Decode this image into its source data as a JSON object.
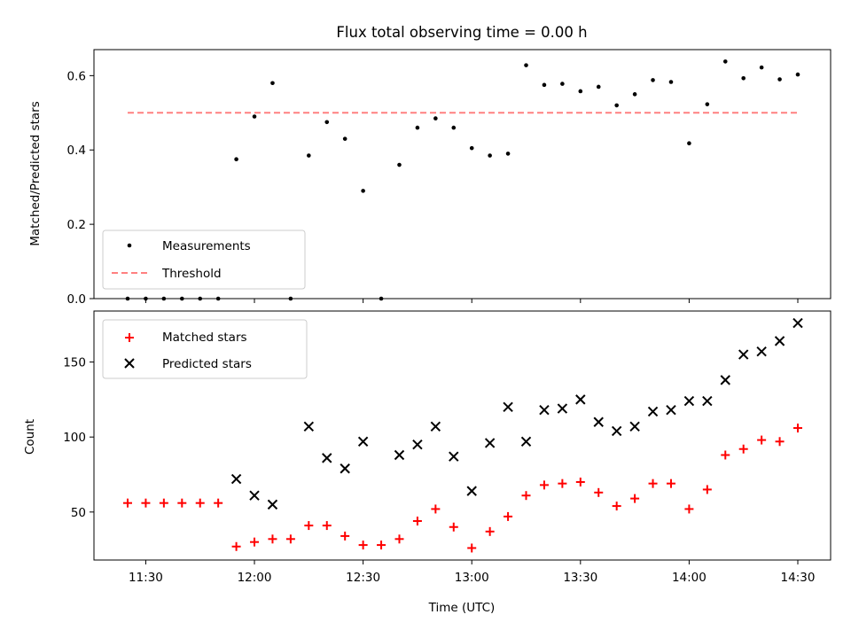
{
  "chart_data": [
    {
      "type": "scatter",
      "title": "Flux total observing time = 0.00 h",
      "ylabel": "Matched/Predicted stars",
      "ylim": [
        0,
        0.67
      ],
      "yticks": [
        0.0,
        0.2,
        0.4,
        0.6
      ],
      "ytick_labels": [
        "0.0",
        "0.2",
        "0.4",
        "0.6"
      ],
      "grid": false,
      "legend_position": "lower-left",
      "series": [
        {
          "name": "Measurements",
          "marker": "dot",
          "color": "#000000",
          "points": [
            {
              "x": "11:25",
              "y": 0.0
            },
            {
              "x": "11:30",
              "y": 0.0
            },
            {
              "x": "11:35",
              "y": 0.0
            },
            {
              "x": "11:40",
              "y": 0.0
            },
            {
              "x": "11:45",
              "y": 0.0
            },
            {
              "x": "11:50",
              "y": 0.0
            },
            {
              "x": "11:55",
              "y": 0.375
            },
            {
              "x": "12:00",
              "y": 0.49
            },
            {
              "x": "12:05",
              "y": 0.58
            },
            {
              "x": "12:10",
              "y": 0.0
            },
            {
              "x": "12:15",
              "y": 0.385
            },
            {
              "x": "12:20",
              "y": 0.475
            },
            {
              "x": "12:25",
              "y": 0.43
            },
            {
              "x": "12:30",
              "y": 0.29
            },
            {
              "x": "12:35",
              "y": 0.0
            },
            {
              "x": "12:40",
              "y": 0.36
            },
            {
              "x": "12:45",
              "y": 0.46
            },
            {
              "x": "12:50",
              "y": 0.485
            },
            {
              "x": "12:55",
              "y": 0.46
            },
            {
              "x": "13:00",
              "y": 0.405
            },
            {
              "x": "13:05",
              "y": 0.385
            },
            {
              "x": "13:10",
              "y": 0.39
            },
            {
              "x": "13:15",
              "y": 0.628
            },
            {
              "x": "13:20",
              "y": 0.575
            },
            {
              "x": "13:25",
              "y": 0.578
            },
            {
              "x": "13:30",
              "y": 0.558
            },
            {
              "x": "13:35",
              "y": 0.57
            },
            {
              "x": "13:40",
              "y": 0.52
            },
            {
              "x": "13:45",
              "y": 0.55
            },
            {
              "x": "13:50",
              "y": 0.588
            },
            {
              "x": "13:55",
              "y": 0.583
            },
            {
              "x": "14:00",
              "y": 0.418
            },
            {
              "x": "14:05",
              "y": 0.523
            },
            {
              "x": "14:10",
              "y": 0.638
            },
            {
              "x": "14:15",
              "y": 0.593
            },
            {
              "x": "14:20",
              "y": 0.622
            },
            {
              "x": "14:25",
              "y": 0.59
            },
            {
              "x": "14:30",
              "y": 0.603
            }
          ]
        },
        {
          "name": "Threshold",
          "type": "line",
          "style": "dashed",
          "color": "#ff8080",
          "points": [
            {
              "x": "11:25",
              "y": 0.5
            },
            {
              "x": "14:30",
              "y": 0.5
            }
          ]
        }
      ]
    },
    {
      "type": "scatter",
      "xlabel": "Time (UTC)",
      "ylabel": "Count",
      "ylim": [
        18,
        184
      ],
      "yticks": [
        50,
        100,
        150
      ],
      "ytick_labels": [
        "50",
        "100",
        "150"
      ],
      "xticks": [
        "11:30",
        "12:00",
        "12:30",
        "13:00",
        "13:30",
        "14:00",
        "14:30"
      ],
      "xtick_labels": [
        "11:30",
        "12:00",
        "12:30",
        "13:00",
        "13:30",
        "14:00",
        "14:30"
      ],
      "grid": false,
      "legend_position": "upper-left",
      "series": [
        {
          "name": "Matched stars",
          "marker": "plus",
          "color": "#ff0000",
          "points": [
            {
              "x": "11:25",
              "y": 56
            },
            {
              "x": "11:30",
              "y": 56
            },
            {
              "x": "11:35",
              "y": 56
            },
            {
              "x": "11:40",
              "y": 56
            },
            {
              "x": "11:45",
              "y": 56
            },
            {
              "x": "11:50",
              "y": 56
            },
            {
              "x": "11:55",
              "y": 27
            },
            {
              "x": "12:00",
              "y": 30
            },
            {
              "x": "12:05",
              "y": 32
            },
            {
              "x": "12:10",
              "y": 32
            },
            {
              "x": "12:15",
              "y": 41
            },
            {
              "x": "12:20",
              "y": 41
            },
            {
              "x": "12:25",
              "y": 34
            },
            {
              "x": "12:30",
              "y": 28
            },
            {
              "x": "12:35",
              "y": 28
            },
            {
              "x": "12:40",
              "y": 32
            },
            {
              "x": "12:45",
              "y": 44
            },
            {
              "x": "12:50",
              "y": 52
            },
            {
              "x": "12:55",
              "y": 40
            },
            {
              "x": "13:00",
              "y": 26
            },
            {
              "x": "13:05",
              "y": 37
            },
            {
              "x": "13:10",
              "y": 47
            },
            {
              "x": "13:15",
              "y": 61
            },
            {
              "x": "13:20",
              "y": 68
            },
            {
              "x": "13:25",
              "y": 69
            },
            {
              "x": "13:30",
              "y": 70
            },
            {
              "x": "13:35",
              "y": 63
            },
            {
              "x": "13:40",
              "y": 54
            },
            {
              "x": "13:45",
              "y": 59
            },
            {
              "x": "13:50",
              "y": 69
            },
            {
              "x": "13:55",
              "y": 69
            },
            {
              "x": "14:00",
              "y": 52
            },
            {
              "x": "14:05",
              "y": 65
            },
            {
              "x": "14:10",
              "y": 88
            },
            {
              "x": "14:15",
              "y": 92
            },
            {
              "x": "14:20",
              "y": 98
            },
            {
              "x": "14:25",
              "y": 97
            },
            {
              "x": "14:30",
              "y": 106
            }
          ]
        },
        {
          "name": "Predicted stars",
          "marker": "x",
          "color": "#000000",
          "points": [
            {
              "x": "11:55",
              "y": 72
            },
            {
              "x": "12:00",
              "y": 61
            },
            {
              "x": "12:05",
              "y": 55
            },
            {
              "x": "12:15",
              "y": 107
            },
            {
              "x": "12:20",
              "y": 86
            },
            {
              "x": "12:25",
              "y": 79
            },
            {
              "x": "12:30",
              "y": 97
            },
            {
              "x": "12:40",
              "y": 88
            },
            {
              "x": "12:45",
              "y": 95
            },
            {
              "x": "12:50",
              "y": 107
            },
            {
              "x": "12:55",
              "y": 87
            },
            {
              "x": "13:00",
              "y": 64
            },
            {
              "x": "13:05",
              "y": 96
            },
            {
              "x": "13:10",
              "y": 120
            },
            {
              "x": "13:15",
              "y": 97
            },
            {
              "x": "13:20",
              "y": 118
            },
            {
              "x": "13:25",
              "y": 119
            },
            {
              "x": "13:30",
              "y": 125
            },
            {
              "x": "13:35",
              "y": 110
            },
            {
              "x": "13:40",
              "y": 104
            },
            {
              "x": "13:45",
              "y": 107
            },
            {
              "x": "13:50",
              "y": 117
            },
            {
              "x": "13:55",
              "y": 118
            },
            {
              "x": "14:00",
              "y": 124
            },
            {
              "x": "14:05",
              "y": 124
            },
            {
              "x": "14:10",
              "y": 138
            },
            {
              "x": "14:15",
              "y": 155
            },
            {
              "x": "14:20",
              "y": 157
            },
            {
              "x": "14:25",
              "y": 164
            },
            {
              "x": "14:30",
              "y": 176
            }
          ]
        }
      ]
    }
  ]
}
